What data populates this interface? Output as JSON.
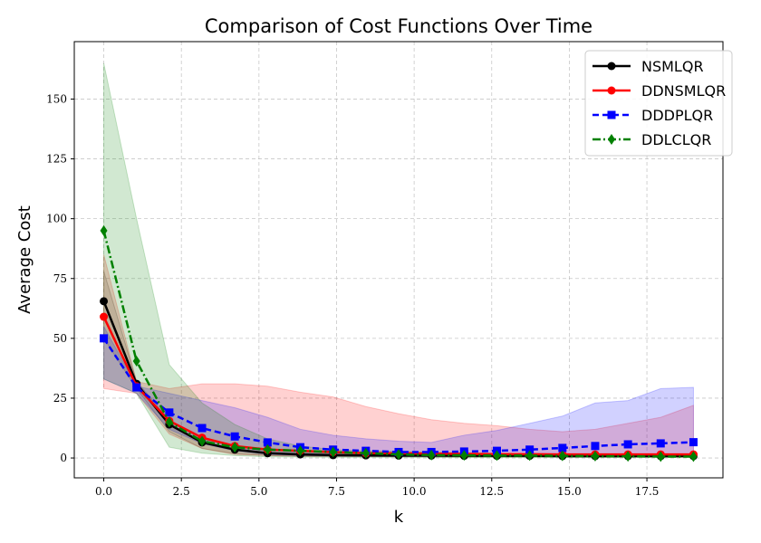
{
  "chart_data": {
    "type": "line",
    "title": "Comparison of Cost Functions Over Time",
    "xlabel": "k",
    "ylabel": "Average Cost",
    "xlim": [
      -0.95,
      19.95
    ],
    "ylim": [
      -8.3,
      174
    ],
    "xticks": [
      0.0,
      2.5,
      5.0,
      7.5,
      10.0,
      12.5,
      15.0,
      17.5
    ],
    "xtick_labels": [
      "0.0",
      "2.5",
      "5.0",
      "7.5",
      "10.0",
      "12.5",
      "15.0",
      "17.5"
    ],
    "yticks": [
      0,
      25,
      50,
      75,
      100,
      125,
      150
    ],
    "ytick_labels": [
      "0",
      "25",
      "50",
      "75",
      "100",
      "125",
      "150"
    ],
    "grid": true,
    "legend_position": "top-right",
    "x": [
      0,
      1.056,
      2.111,
      3.167,
      4.222,
      5.278,
      6.333,
      7.389,
      8.444,
      9.5,
      10.556,
      11.611,
      12.667,
      13.722,
      14.778,
      15.833,
      16.889,
      17.944,
      19
    ],
    "series": [
      {
        "name": "NSMLQR",
        "color": "#000000",
        "linestyle": "solid",
        "marker": "circle",
        "band_color": "#000000",
        "values": [
          65.5,
          31,
          14,
          6.5,
          3.5,
          2,
          1.5,
          1.2,
          1.1,
          1,
          1,
          0.9,
          0.9,
          0.9,
          0.8,
          0.8,
          0.8,
          0.8,
          0.8
        ],
        "upper": [
          78,
          32,
          16,
          8,
          5,
          3.5,
          2.5,
          2,
          1.8,
          1.6,
          1.5,
          1.4,
          1.4,
          1.3,
          1.3,
          1.3,
          1.3,
          1.3,
          1.3
        ],
        "lower": [
          50,
          29,
          11,
          4,
          1.8,
          1,
          0.7,
          0.6,
          0.5,
          0.5,
          0.5,
          0.4,
          0.4,
          0.4,
          0.4,
          0.4,
          0.4,
          0.4,
          0.4
        ]
      },
      {
        "name": "DDNSMLQR",
        "color": "#ff0000",
        "linestyle": "solid",
        "marker": "circle",
        "band_color": "#ff0000",
        "values": [
          59,
          30,
          15.5,
          8.5,
          5,
          3.5,
          3,
          2.5,
          2,
          2,
          1.8,
          1.7,
          1.6,
          1.6,
          1.5,
          1.5,
          1.5,
          1.5,
          1.5
        ],
        "upper": [
          85,
          32,
          29,
          31,
          31,
          30,
          27.5,
          25.5,
          21.5,
          18.5,
          16,
          14.5,
          13.5,
          12,
          11,
          12,
          14.5,
          17,
          22
        ],
        "lower": [
          29,
          27,
          10,
          4,
          1.5,
          1,
          0.8,
          0.7,
          0.6,
          0.6,
          0.6,
          0.5,
          0.5,
          0.5,
          0.5,
          0.5,
          0.5,
          0.5,
          0.5
        ]
      },
      {
        "name": "DDDPLQR",
        "color": "#0000ff",
        "linestyle": "dashed",
        "marker": "square",
        "band_color": "#0000ff",
        "values": [
          50,
          29.5,
          19,
          12.5,
          9,
          6.5,
          4.5,
          3.5,
          3,
          2.5,
          2.5,
          2.7,
          3,
          3.5,
          4.2,
          5,
          5.7,
          6.1,
          6.6
        ],
        "upper": [
          55,
          30,
          27,
          24,
          21,
          17,
          12,
          9.5,
          8,
          7,
          6.5,
          9.5,
          11.5,
          14.5,
          17.5,
          23,
          24,
          29,
          29.5
        ],
        "lower": [
          33,
          27,
          12,
          6,
          3,
          1.5,
          1,
          0.8,
          0.7,
          0.6,
          0.6,
          0.6,
          0.6,
          0.6,
          0.6,
          0.6,
          0.6,
          0.6,
          0.6
        ]
      },
      {
        "name": "DDLCLQR",
        "color": "#008000",
        "linestyle": "dashdot",
        "marker": "diamond",
        "band_color": "#008000",
        "values": [
          95,
          40.5,
          15,
          7,
          4.5,
          3.5,
          3,
          2.5,
          2,
          1.5,
          1.2,
          1.1,
          1,
          1,
          0.9,
          0.8,
          0.7,
          0.6,
          0.6
        ],
        "upper": [
          165,
          100,
          39,
          23,
          14,
          8,
          5,
          3.5,
          3,
          2.8,
          2.5,
          2.2,
          2,
          1.8,
          1.6,
          1.5,
          1.4,
          1.3,
          1.3
        ],
        "lower": [
          33,
          27,
          4.5,
          2,
          1,
          0.5,
          0.4,
          0.3,
          0.3,
          0.3,
          0.2,
          0.2,
          0.2,
          0.2,
          0.2,
          0.2,
          0.2,
          0.2,
          0.2
        ]
      }
    ]
  }
}
